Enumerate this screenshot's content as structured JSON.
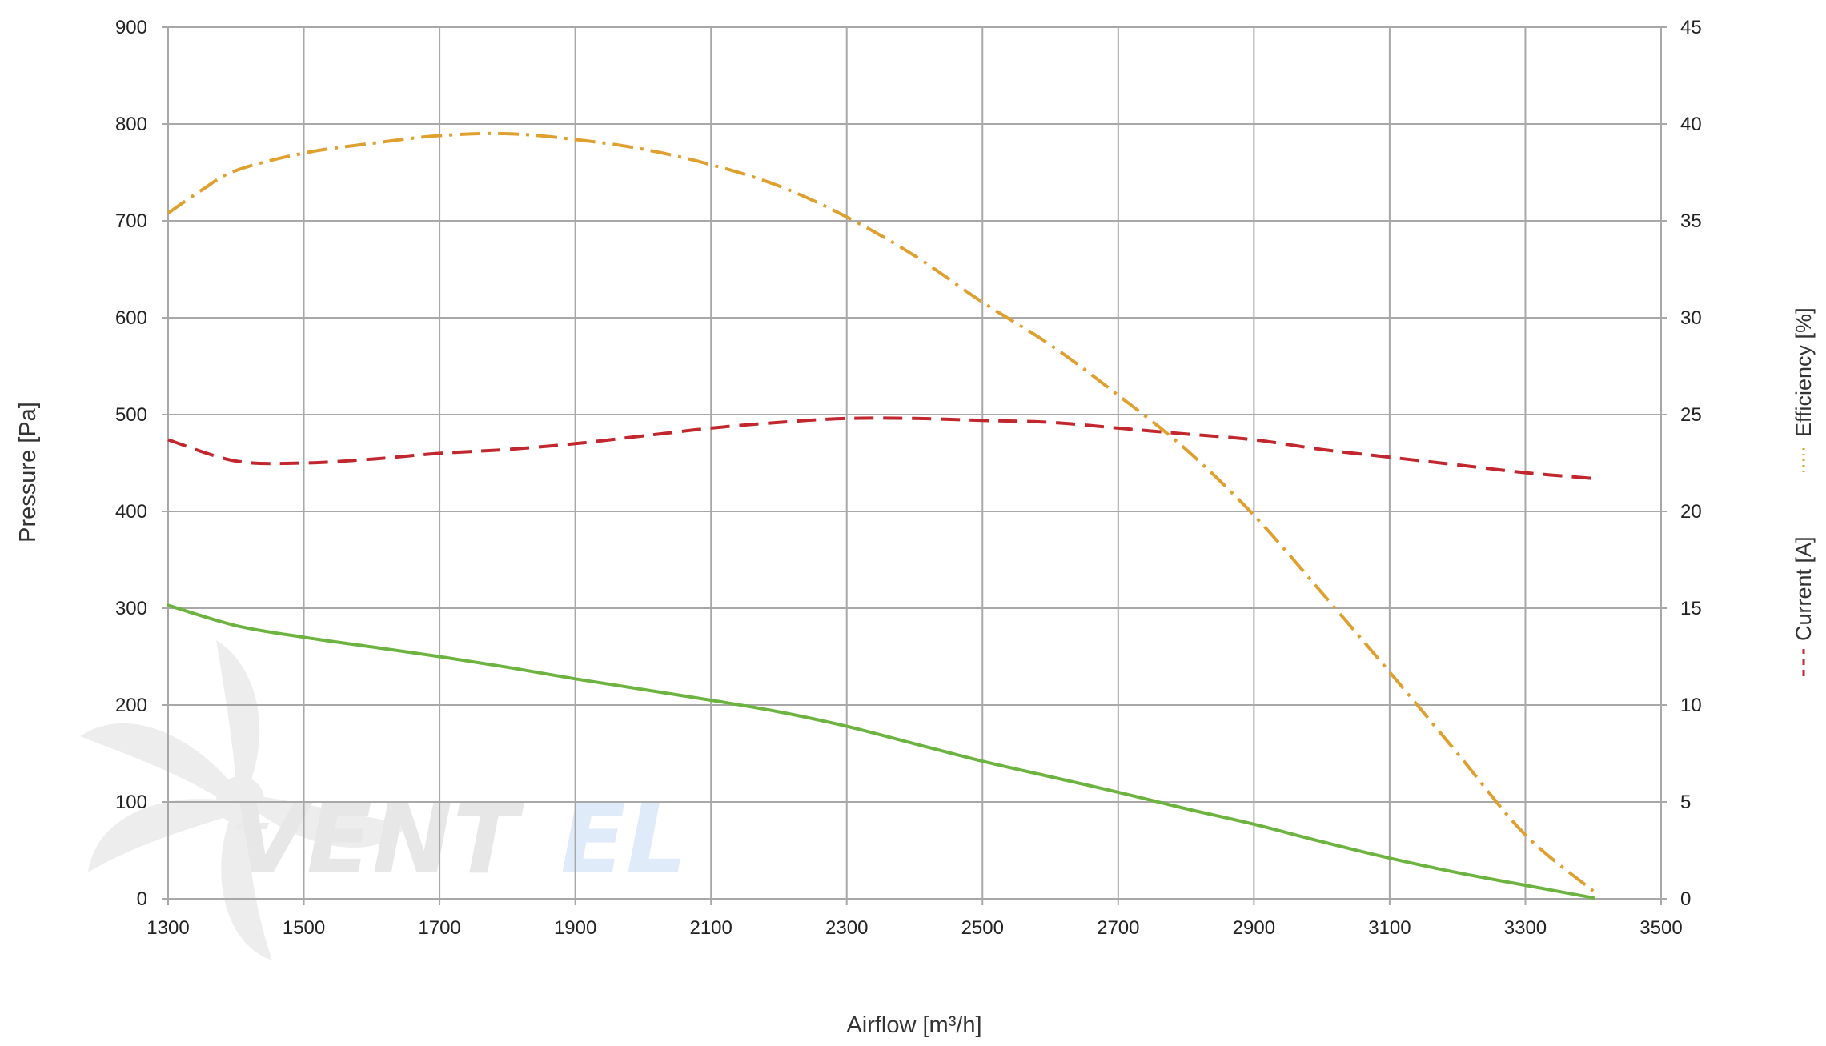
{
  "chart_data": {
    "type": "line",
    "xlabel": "Airflow [m³/h]",
    "ylabel_left": "Pressure [Pa]",
    "ylabel_right_legend": [
      "Current [A]",
      "Efficiency [%]"
    ],
    "xlim": [
      1300,
      3500
    ],
    "ylim_left": [
      0,
      900
    ],
    "ylim_right": [
      0,
      45
    ],
    "x_ticks": [
      "1300",
      "1500",
      "1700",
      "1900",
      "2100",
      "2300",
      "2500",
      "2700",
      "2900",
      "3100",
      "3300",
      "3500"
    ],
    "y_left_ticks": [
      "0",
      "100",
      "200",
      "300",
      "400",
      "500",
      "600",
      "700",
      "800",
      "900"
    ],
    "y_right_ticks": [
      "0",
      "5",
      "10",
      "15",
      "20",
      "25",
      "30",
      "35",
      "40",
      "45"
    ],
    "grid": true,
    "series": [
      {
        "name": "Pressure [Pa]",
        "axis": "left",
        "color": "#6db33f",
        "style": "solid",
        "x": [
          1300,
          1400,
          1500,
          1600,
          1700,
          1800,
          1900,
          2000,
          2100,
          2200,
          2300,
          2400,
          2500,
          2600,
          2700,
          2800,
          2900,
          3000,
          3100,
          3200,
          3300,
          3400
        ],
        "y": [
          303,
          282,
          270,
          260,
          250,
          239,
          227,
          216,
          205,
          193,
          178,
          160,
          142,
          126,
          110,
          93,
          77,
          59,
          42,
          27,
          14,
          1
        ]
      },
      {
        "name": "Current [A]",
        "axis": "right",
        "color": "#c1272d",
        "style": "dashed",
        "x": [
          1300,
          1400,
          1500,
          1600,
          1700,
          1800,
          1900,
          2000,
          2100,
          2200,
          2300,
          2400,
          2500,
          2600,
          2700,
          2800,
          2900,
          3000,
          3100,
          3200,
          3300,
          3400
        ],
        "y": [
          23.7,
          22.6,
          22.5,
          22.7,
          23.0,
          23.2,
          23.5,
          23.9,
          24.3,
          24.6,
          24.8,
          24.8,
          24.7,
          24.6,
          24.3,
          24.0,
          23.7,
          23.2,
          22.8,
          22.4,
          22.0,
          21.7
        ]
      },
      {
        "name": "Efficiency [%]",
        "axis": "right",
        "color": "#e0a030",
        "style": "dashdot",
        "x": [
          1300,
          1350,
          1400,
          1500,
          1600,
          1700,
          1800,
          1900,
          2000,
          2100,
          2200,
          2300,
          2400,
          2500,
          2600,
          2700,
          2800,
          2900,
          3000,
          3100,
          3200,
          3300,
          3400
        ],
        "y": [
          35.4,
          36.6,
          37.6,
          38.5,
          39.0,
          39.4,
          39.5,
          39.2,
          38.7,
          37.9,
          36.8,
          35.2,
          33.2,
          30.8,
          28.6,
          26.0,
          23.2,
          19.8,
          15.8,
          11.7,
          7.5,
          3.3,
          0.4
        ]
      }
    ]
  }
}
